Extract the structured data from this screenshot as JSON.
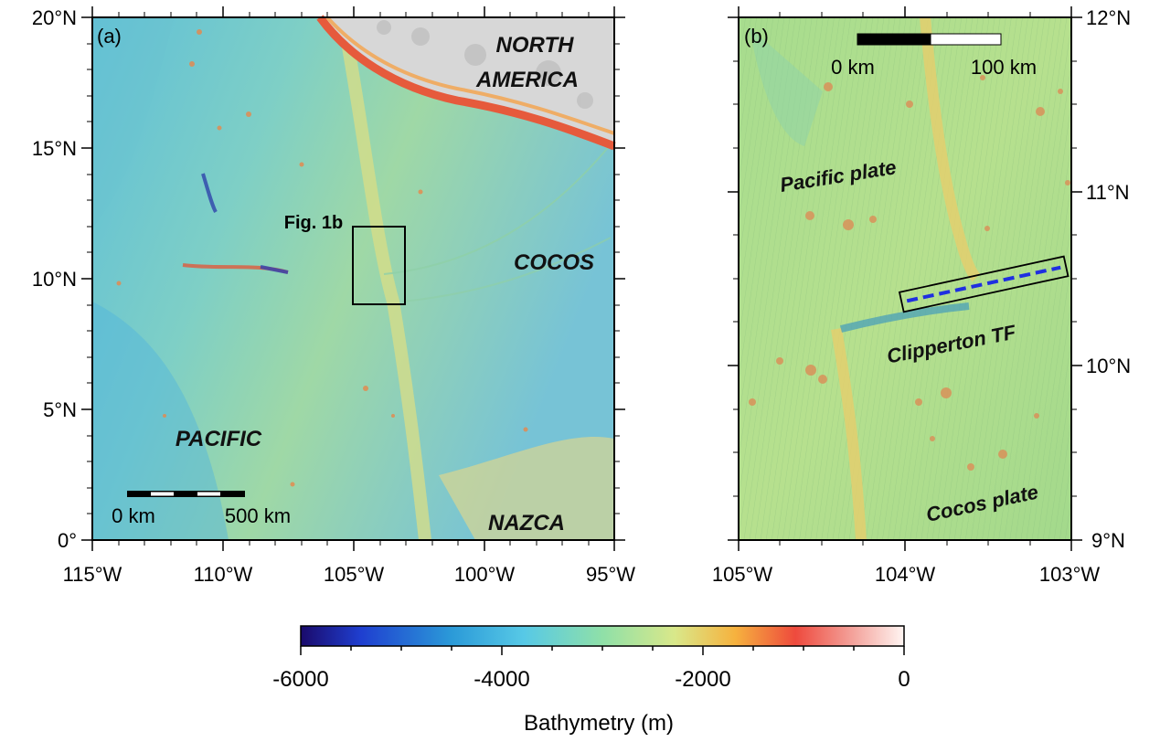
{
  "panel_a": {
    "tag": "(a)",
    "lat_ticks": [
      "20°N",
      "15°N",
      "10°N",
      "5°N",
      "0°"
    ],
    "lon_ticks": [
      "115°W",
      "110°W",
      "105°W",
      "100°W",
      "95°W"
    ],
    "labels": {
      "north_america_1": "NORTH",
      "north_america_2": "AMERICA",
      "cocos": "COCOS",
      "pacific": "PACIFIC",
      "nazca": "NAZCA",
      "fig1b": "Fig. 1b"
    },
    "scale_bar": {
      "left": "0 km",
      "right": "500 km"
    }
  },
  "panel_b": {
    "tag": "(b)",
    "lat_ticks": [
      "12°N",
      "11°N",
      "10°N",
      "9°N"
    ],
    "lon_ticks": [
      "105°W",
      "104°W",
      "103°W"
    ],
    "labels": {
      "pacific_plate": "Pacific plate",
      "clipperton": "Clipperton TF",
      "cocos_plate": "Cocos plate"
    },
    "scale_bar": {
      "left": "0 km",
      "right": "100 km"
    }
  },
  "colorbar": {
    "ticks": [
      "-6000",
      "-4000",
      "-2000",
      "0"
    ],
    "label": "Bathymetry (m)",
    "range": [
      -6000,
      0
    ]
  }
}
